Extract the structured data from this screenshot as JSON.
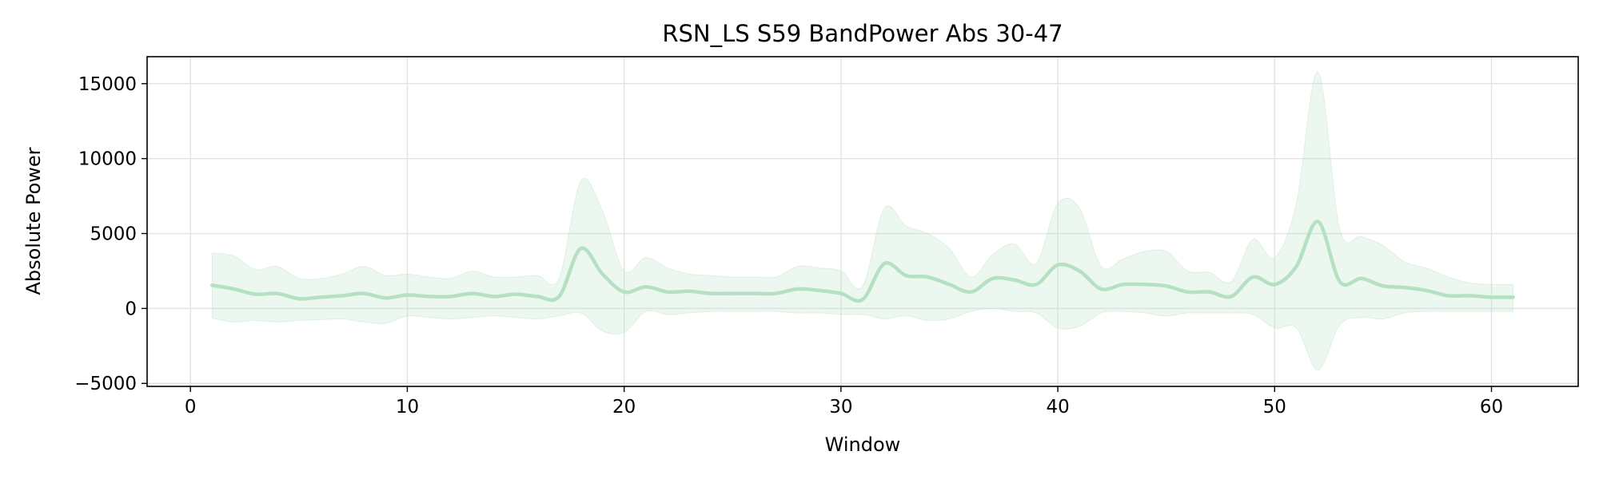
{
  "chart_data": {
    "type": "line",
    "title": "RSN_LS S59 BandPower Abs 30-47",
    "xlabel": "Window",
    "ylabel": "Absolute Power",
    "xlim": [
      -2,
      64
    ],
    "ylim": [
      -5200,
      16800
    ],
    "xticks": [
      0,
      10,
      20,
      30,
      40,
      50,
      60
    ],
    "xtick_labels": [
      "0",
      "10",
      "20",
      "30",
      "40",
      "50",
      "60"
    ],
    "yticks": [
      -5000,
      0,
      5000,
      10000,
      15000
    ],
    "ytick_labels": [
      "−5000",
      "0",
      "5000",
      "10000",
      "15000"
    ],
    "grid": true,
    "legend": "none",
    "colors": {
      "line": "#b5e0c2",
      "band": "#b5e0c2"
    },
    "series": [
      {
        "x": [
          1,
          2,
          3,
          4,
          5,
          6,
          7,
          8,
          9,
          10,
          11,
          12,
          13,
          14,
          15,
          16,
          17,
          18,
          19,
          20,
          21,
          22,
          23,
          24,
          25,
          26,
          27,
          28,
          29,
          30,
          31,
          32,
          33,
          34,
          35,
          36,
          37,
          38,
          39,
          40,
          41,
          42,
          43,
          44,
          45,
          46,
          47,
          48,
          49,
          50,
          51,
          52,
          53,
          54,
          55,
          56,
          57,
          58,
          59,
          60,
          61
        ],
        "mean": [
          1550,
          1300,
          950,
          1000,
          650,
          750,
          850,
          1000,
          700,
          900,
          800,
          800,
          1000,
          800,
          950,
          800,
          800,
          4000,
          2300,
          1100,
          1450,
          1100,
          1150,
          1000,
          1000,
          1000,
          1000,
          1300,
          1200,
          1000,
          600,
          3000,
          2200,
          2100,
          1600,
          1100,
          2000,
          1900,
          1600,
          2900,
          2500,
          1300,
          1600,
          1600,
          1500,
          1100,
          1100,
          800,
          2100,
          1600,
          2800,
          5800,
          1800,
          2000,
          1500,
          1400,
          1200,
          850,
          850,
          750,
          750
        ],
        "upper": [
          3700,
          3500,
          2600,
          2800,
          2000,
          2000,
          2300,
          2800,
          2200,
          2300,
          2100,
          2000,
          2500,
          2100,
          2100,
          2200,
          2000,
          8500,
          6500,
          2500,
          3400,
          2700,
          2300,
          2200,
          2100,
          2100,
          2100,
          2800,
          2700,
          2500,
          1500,
          6700,
          5500,
          5000,
          4000,
          2100,
          3600,
          4300,
          3000,
          7000,
          6700,
          2800,
          3300,
          3800,
          3800,
          2500,
          2400,
          1800,
          4600,
          3400,
          7000,
          15800,
          5300,
          4800,
          4200,
          3100,
          2700,
          2100,
          1700,
          1600,
          1600
        ],
        "lower": [
          -650,
          -900,
          -800,
          -900,
          -800,
          -750,
          -700,
          -900,
          -1000,
          -500,
          -600,
          -700,
          -600,
          -500,
          -600,
          -700,
          -500,
          -300,
          -1500,
          -1600,
          -200,
          -400,
          -300,
          -200,
          -200,
          -200,
          -200,
          -300,
          -300,
          -400,
          -400,
          -700,
          -500,
          -800,
          -700,
          -200,
          0,
          -200,
          -300,
          -1300,
          -1200,
          -300,
          -200,
          -300,
          -500,
          -300,
          -300,
          -300,
          -400,
          -1300,
          -1300,
          -4100,
          -1100,
          -600,
          -700,
          -300,
          -200,
          -200,
          -200,
          -200,
          -200
        ]
      }
    ]
  }
}
